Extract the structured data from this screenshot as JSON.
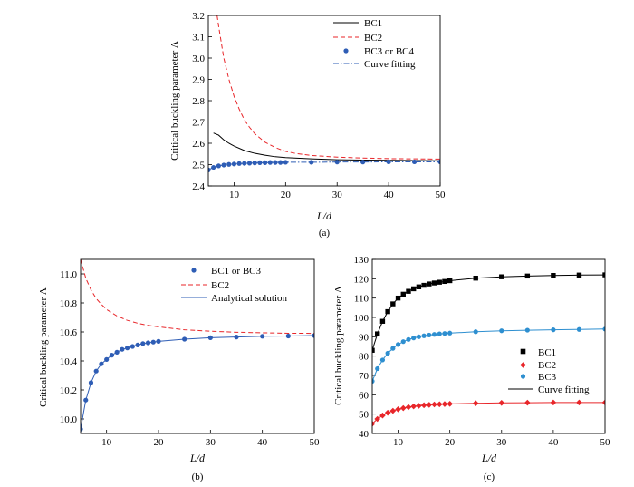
{
  "figure": {
    "caption_a": "(a)",
    "caption_b": "(b)",
    "caption_c": "(c)"
  },
  "chart_data": [
    {
      "panel": "(a)",
      "type": "line",
      "title": "",
      "xlabel": "L/d",
      "ylabel": "Critical buckling parameter Λ",
      "xlim": [
        5,
        50
      ],
      "ylim": [
        2.4,
        3.2
      ],
      "xticks": [
        10,
        20,
        30,
        40,
        50
      ],
      "yticks": [
        2.4,
        2.5,
        2.6,
        2.7,
        2.8,
        2.9,
        3.0,
        3.1,
        3.2
      ],
      "ytick_decimals": 1,
      "grid": false,
      "legend_position": "top-right",
      "series": [
        {
          "name": "BC1",
          "style": "solid",
          "color": "#000000",
          "x": [
            6,
            7,
            8,
            9,
            10,
            12,
            14,
            16,
            18,
            20,
            25,
            30,
            35,
            40,
            45,
            50
          ],
          "y": [
            2.648,
            2.638,
            2.616,
            2.6,
            2.587,
            2.566,
            2.553,
            2.544,
            2.537,
            2.533,
            2.527,
            2.523,
            2.521,
            2.52,
            2.519,
            2.518
          ]
        },
        {
          "name": "BC2",
          "style": "dashed",
          "color": "#e8262a",
          "x": [
            6.7,
            7,
            8,
            9,
            10,
            11,
            12,
            13,
            14,
            16,
            18,
            20,
            22,
            25,
            30,
            35,
            40,
            45,
            50
          ],
          "y": [
            3.2,
            3.15,
            3.0,
            2.9,
            2.82,
            2.76,
            2.71,
            2.675,
            2.645,
            2.605,
            2.58,
            2.562,
            2.552,
            2.543,
            2.535,
            2.531,
            2.528,
            2.527,
            2.526
          ]
        },
        {
          "name": "BC3 or BC4",
          "style": "markers",
          "marker": "circle",
          "color": "#2e5db5",
          "x": [
            5,
            6,
            7,
            8,
            9,
            10,
            11,
            12,
            13,
            14,
            15,
            16,
            17,
            18,
            19,
            20,
            25,
            30,
            35,
            40,
            45,
            50
          ],
          "y": [
            2.475,
            2.487,
            2.494,
            2.498,
            2.501,
            2.503,
            2.505,
            2.506,
            2.507,
            2.508,
            2.509,
            2.509,
            2.51,
            2.51,
            2.51,
            2.511,
            2.511,
            2.512,
            2.512,
            2.513,
            2.513,
            2.513
          ]
        },
        {
          "name": "Curve fitting",
          "style": "dashdot",
          "color": "#2e5db5",
          "x": [
            5,
            6,
            7,
            8,
            9,
            10,
            12,
            14,
            16,
            18,
            20,
            25,
            30,
            35,
            40,
            45,
            50
          ],
          "y": [
            2.475,
            2.487,
            2.494,
            2.498,
            2.501,
            2.503,
            2.506,
            2.508,
            2.509,
            2.51,
            2.511,
            2.511,
            2.512,
            2.512,
            2.513,
            2.513,
            2.513
          ]
        }
      ]
    },
    {
      "panel": "(b)",
      "type": "line",
      "title": "",
      "xlabel": "L/d",
      "ylabel": "Critical buckling parameter Λ",
      "xlim": [
        5,
        50
      ],
      "ylim": [
        9.9,
        11.1
      ],
      "xticks": [
        10,
        20,
        30,
        40,
        50
      ],
      "yticks": [
        10.0,
        10.2,
        10.4,
        10.6,
        10.8,
        11.0
      ],
      "ytick_decimals": 1,
      "grid": false,
      "legend_position": "top-right",
      "series": [
        {
          "name": "BC1 or BC3",
          "style": "markers",
          "marker": "circle",
          "color": "#2e5db5",
          "x": [
            5,
            6,
            7,
            8,
            9,
            10,
            11,
            12,
            13,
            14,
            15,
            16,
            17,
            18,
            19,
            20,
            25,
            30,
            35,
            40,
            45,
            50
          ],
          "y": [
            9.93,
            10.13,
            10.25,
            10.33,
            10.38,
            10.41,
            10.44,
            10.46,
            10.48,
            10.49,
            10.5,
            10.51,
            10.52,
            10.525,
            10.53,
            10.535,
            10.55,
            10.56,
            10.565,
            10.57,
            10.572,
            10.575
          ]
        },
        {
          "name": "BC2",
          "style": "dashed",
          "color": "#e8262a",
          "x": [
            5,
            6,
            7,
            8,
            9,
            10,
            12,
            14,
            16,
            18,
            20,
            25,
            30,
            35,
            40,
            45,
            50
          ],
          "y": [
            11.1,
            10.97,
            10.89,
            10.83,
            10.79,
            10.755,
            10.71,
            10.68,
            10.66,
            10.645,
            10.635,
            10.615,
            10.605,
            10.598,
            10.594,
            10.591,
            10.59
          ]
        },
        {
          "name": "Analytical solution",
          "style": "solid",
          "color": "#2e5db5",
          "x": [
            5,
            6,
            7,
            8,
            9,
            10,
            11,
            12,
            13,
            14,
            15,
            16,
            17,
            18,
            19,
            20,
            25,
            30,
            35,
            40,
            45,
            50
          ],
          "y": [
            9.93,
            10.13,
            10.25,
            10.33,
            10.38,
            10.41,
            10.44,
            10.46,
            10.48,
            10.49,
            10.5,
            10.51,
            10.52,
            10.525,
            10.53,
            10.535,
            10.55,
            10.56,
            10.565,
            10.57,
            10.572,
            10.575
          ]
        }
      ]
    },
    {
      "panel": "(c)",
      "type": "line",
      "title": "",
      "xlabel": "L/d",
      "ylabel": "Critical buckling parameter Λ",
      "xlim": [
        5,
        50
      ],
      "ylim": [
        40,
        130
      ],
      "xticks": [
        10,
        20,
        30,
        40,
        50
      ],
      "yticks": [
        40,
        50,
        60,
        70,
        80,
        90,
        100,
        110,
        120,
        130
      ],
      "ytick_decimals": 0,
      "grid": false,
      "legend_position": "lower-right",
      "series": [
        {
          "name": "BC1",
          "style": "markers",
          "marker": "square",
          "color": "#000000",
          "x": [
            5,
            6,
            7,
            8,
            9,
            10,
            11,
            12,
            13,
            14,
            15,
            16,
            17,
            18,
            19,
            20,
            25,
            30,
            35,
            40,
            45,
            50
          ],
          "y": [
            83,
            91.5,
            98,
            103,
            107,
            110,
            112,
            113.5,
            114.8,
            115.8,
            116.6,
            117.3,
            117.8,
            118.2,
            118.6,
            119,
            120.3,
            121,
            121.4,
            121.7,
            121.9,
            122
          ]
        },
        {
          "name": "BC2",
          "style": "markers",
          "marker": "diamond",
          "color": "#e8262a",
          "x": [
            5,
            6,
            7,
            8,
            9,
            10,
            11,
            12,
            13,
            14,
            15,
            16,
            17,
            18,
            19,
            20,
            25,
            30,
            35,
            40,
            45,
            50
          ],
          "y": [
            45,
            47.5,
            49.3,
            50.7,
            51.7,
            52.5,
            53.1,
            53.6,
            54,
            54.3,
            54.6,
            54.8,
            55,
            55.1,
            55.2,
            55.3,
            55.6,
            55.8,
            55.9,
            56,
            56,
            56
          ]
        },
        {
          "name": "BC3",
          "style": "markers",
          "marker": "circle",
          "color": "#2e8fd0",
          "x": [
            5,
            6,
            7,
            8,
            9,
            10,
            11,
            12,
            13,
            14,
            15,
            16,
            17,
            18,
            19,
            20,
            25,
            30,
            35,
            40,
            45,
            50
          ],
          "y": [
            67,
            73.5,
            78,
            81.5,
            84,
            86,
            87.5,
            88.6,
            89.4,
            90,
            90.5,
            90.9,
            91.2,
            91.5,
            91.7,
            91.9,
            92.6,
            93.1,
            93.4,
            93.6,
            93.8,
            94
          ]
        },
        {
          "name": "Curve fitting",
          "style": "solid",
          "color": "#000000",
          "x": [],
          "y": []
        }
      ]
    }
  ]
}
